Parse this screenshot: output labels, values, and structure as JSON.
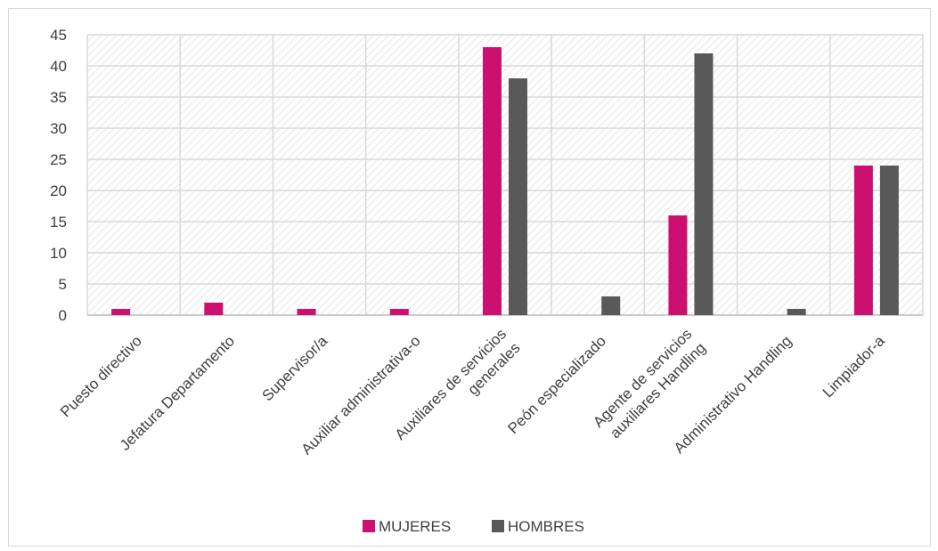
{
  "chart_data": {
    "type": "bar",
    "categories": [
      [
        "Puesto directivo"
      ],
      [
        "Jefatura Departamento"
      ],
      [
        "Supervisor/a"
      ],
      [
        "Auxiliar administrativa-o"
      ],
      [
        "Auxiliares de servicios",
        "generales"
      ],
      [
        "Peón especializado"
      ],
      [
        "Agente de servicios",
        "auxiliares Handling"
      ],
      [
        "Administrativo Handling"
      ],
      [
        "Limpiador-a"
      ]
    ],
    "series": [
      {
        "name": "MUJERES",
        "color": "#cc1070",
        "values": [
          1,
          2,
          1,
          1,
          43,
          0,
          16,
          0,
          24
        ]
      },
      {
        "name": "HOMBRES",
        "color": "#595959",
        "values": [
          0,
          0,
          0,
          0,
          38,
          3,
          42,
          1,
          24
        ]
      }
    ],
    "ylim": [
      0,
      45
    ],
    "yticks": [
      0,
      5,
      10,
      15,
      20,
      25,
      30,
      35,
      40,
      45
    ],
    "grid": true,
    "legend_position": "bottom"
  }
}
